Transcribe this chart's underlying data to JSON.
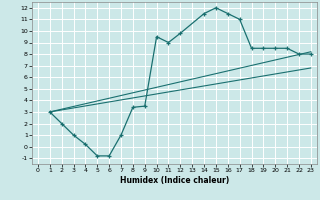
{
  "xlabel": "Humidex (Indice chaleur)",
  "bg_color": "#cce8e8",
  "grid_color": "#ffffff",
  "line_color": "#1a7070",
  "xlim": [
    -0.5,
    23.5
  ],
  "ylim": [
    -1.5,
    12.5
  ],
  "xticks": [
    0,
    1,
    2,
    3,
    4,
    5,
    6,
    7,
    8,
    9,
    10,
    11,
    12,
    13,
    14,
    15,
    16,
    17,
    18,
    19,
    20,
    21,
    22,
    23
  ],
  "yticks": [
    -1,
    0,
    1,
    2,
    3,
    4,
    5,
    6,
    7,
    8,
    9,
    10,
    11,
    12
  ],
  "curve1_x": [
    1,
    2,
    3,
    4,
    5,
    6,
    7,
    8,
    9,
    10,
    11,
    12,
    14,
    15,
    16,
    17,
    18,
    19,
    20,
    21,
    22,
    23
  ],
  "curve1_y": [
    3.0,
    2.0,
    1.0,
    0.2,
    -0.8,
    -0.8,
    1.0,
    3.4,
    3.5,
    9.5,
    9.0,
    9.8,
    11.5,
    12.0,
    11.5,
    11.0,
    8.5,
    8.5,
    8.5,
    8.5,
    8.0,
    8.0
  ],
  "line2_x": [
    1,
    23
  ],
  "line2_y": [
    3.0,
    8.2
  ],
  "line3_x": [
    1,
    23
  ],
  "line3_y": [
    3.0,
    6.8
  ],
  "line4_x": [
    1,
    23
  ],
  "line4_y": [
    3.0,
    8.0
  ]
}
